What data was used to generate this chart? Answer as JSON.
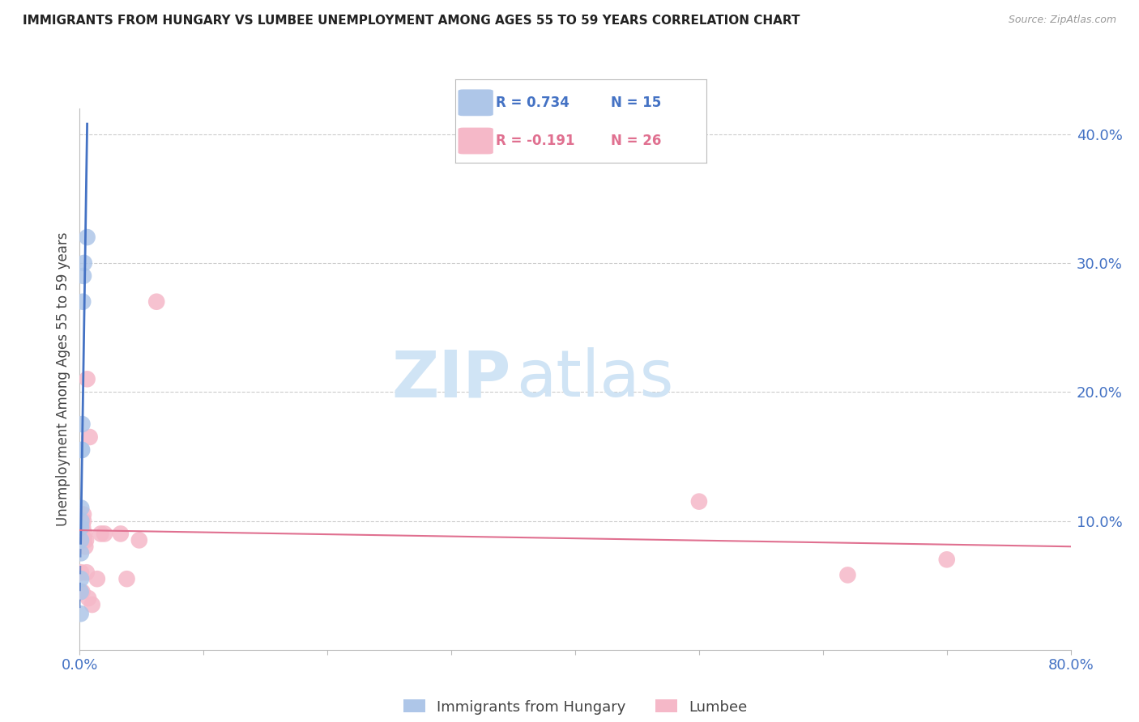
{
  "title": "IMMIGRANTS FROM HUNGARY VS LUMBEE UNEMPLOYMENT AMONG AGES 55 TO 59 YEARS CORRELATION CHART",
  "source": "Source: ZipAtlas.com",
  "ylabel": "Unemployment Among Ages 55 to 59 years",
  "blue_color": "#aec6e8",
  "blue_line_color": "#4472c4",
  "pink_color": "#f5b8c8",
  "pink_line_color": "#e07090",
  "legend_blue_R": "R = 0.734",
  "legend_blue_N": "N = 15",
  "legend_pink_R": "R = -0.191",
  "legend_pink_N": "N = 26",
  "legend_label_blue": "Immigrants from Hungary",
  "legend_label_pink": "Lumbee",
  "xlim": [
    0.0,
    0.8
  ],
  "ylim": [
    0.0,
    0.42
  ],
  "ytick_values": [
    0.1,
    0.2,
    0.3,
    0.4
  ],
  "background_color": "#ffffff",
  "watermark_text1": "ZIP",
  "watermark_text2": "atlas",
  "watermark_color": "#d0e4f5",
  "hungary_x": [
    0.0008,
    0.0008,
    0.001,
    0.001,
    0.001,
    0.001,
    0.0012,
    0.0012,
    0.0015,
    0.0018,
    0.002,
    0.0025,
    0.003,
    0.0035,
    0.006
  ],
  "hungary_y": [
    0.028,
    0.045,
    0.055,
    0.075,
    0.085,
    0.095,
    0.1,
    0.11,
    0.155,
    0.155,
    0.175,
    0.27,
    0.29,
    0.3,
    0.32
  ],
  "lumbee_x": [
    0.0008,
    0.001,
    0.0015,
    0.002,
    0.0025,
    0.003,
    0.003,
    0.0035,
    0.004,
    0.0045,
    0.005,
    0.0055,
    0.006,
    0.007,
    0.008,
    0.01,
    0.014,
    0.017,
    0.02,
    0.033,
    0.038,
    0.048,
    0.062,
    0.5,
    0.62,
    0.7
  ],
  "lumbee_y": [
    0.045,
    0.06,
    0.1,
    0.045,
    0.095,
    0.1,
    0.105,
    0.085,
    0.09,
    0.08,
    0.085,
    0.06,
    0.21,
    0.04,
    0.165,
    0.035,
    0.055,
    0.09,
    0.09,
    0.09,
    0.055,
    0.085,
    0.27,
    0.115,
    0.058,
    0.07
  ],
  "lumbee_line_x0": 0.0,
  "lumbee_line_x1": 0.8,
  "lumbee_line_y0": 0.105,
  "lumbee_line_y1": 0.068
}
